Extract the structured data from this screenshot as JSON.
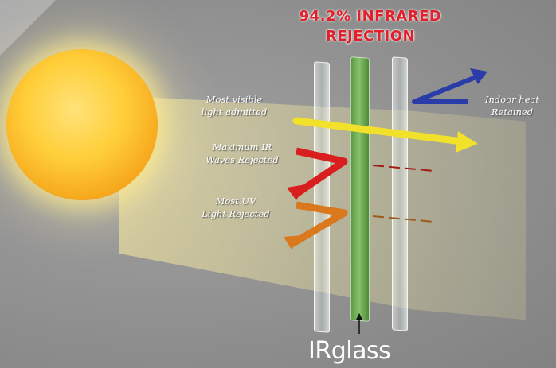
{
  "diagram": {
    "title_line1": "94.2% INFRARED",
    "title_line2": "REJECTION",
    "labels": {
      "visible_line1": "Most visible",
      "visible_line2": "light admitted",
      "ir_line1": "Maximum IR",
      "ir_line2": "Waves Rejected",
      "uv_line1": "Most UV",
      "uv_line2": "Light Rejected",
      "heat_line1": "Indoor heat",
      "heat_line2": "Retained"
    },
    "brand": "IRglass",
    "colors": {
      "title": "#e0202a",
      "visible_arrow": "#f2e12a",
      "ir_arrow": "#d81e1e",
      "uv_arrow": "#d9781c",
      "heat_arrow": "#2a3ca8",
      "film": "#6cab52"
    }
  }
}
